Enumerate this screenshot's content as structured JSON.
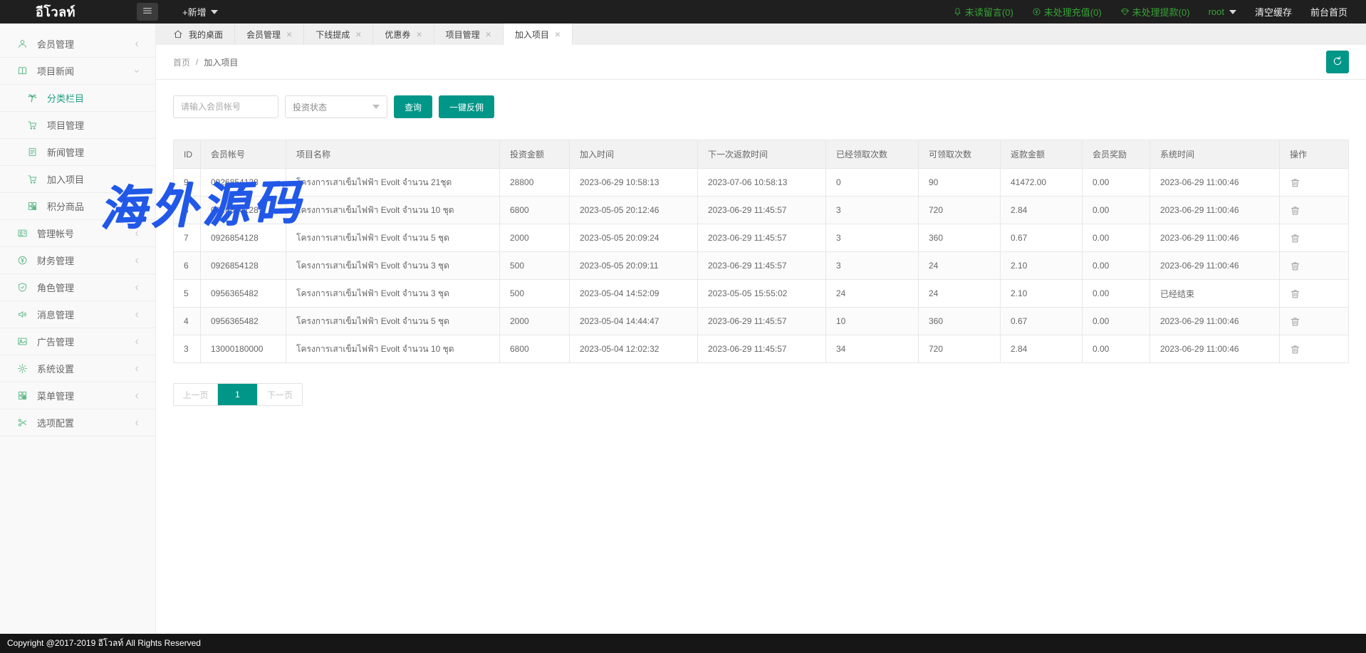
{
  "topbar": {
    "logo": "อีโวลท์",
    "add_label": "+新增",
    "notices": [
      {
        "icon": "bell-icon",
        "label": "未读留言(0)"
      },
      {
        "icon": "recharge-icon",
        "label": "未处理充值(0)"
      },
      {
        "icon": "withdraw-icon",
        "label": "未处理提款(0)"
      }
    ],
    "user": "root",
    "clear_cache": "清空缓存",
    "front_home": "前台首页"
  },
  "tabs": [
    {
      "label": "我的桌面",
      "icon": "home-icon",
      "closable": false,
      "active": false
    },
    {
      "label": "会员管理",
      "closable": true,
      "active": false
    },
    {
      "label": "下线提成",
      "closable": true,
      "active": false
    },
    {
      "label": "优惠券",
      "closable": true,
      "active": false
    },
    {
      "label": "项目管理",
      "closable": true,
      "active": false
    },
    {
      "label": "加入项目",
      "closable": true,
      "active": true
    }
  ],
  "breadcrumb": {
    "home": "首页",
    "sep": "/",
    "current": "加入项目"
  },
  "filters": {
    "account_placeholder": "请输入会员帐号",
    "status_placeholder": "投资状态",
    "search_label": "查询",
    "rebate_label": "一键反佣"
  },
  "sidebar": {
    "items": [
      {
        "label": "会员管理",
        "icon": "user-icon",
        "state": "collapsed"
      },
      {
        "label": "项目新闻",
        "icon": "book-icon",
        "state": "expanded",
        "children": [
          {
            "label": "分类栏目",
            "icon": "palm-icon",
            "active": true
          },
          {
            "label": "项目管理",
            "icon": "cart-icon",
            "active": false
          },
          {
            "label": "新闻管理",
            "icon": "news-icon",
            "active": false
          },
          {
            "label": "加入项目",
            "icon": "cart-icon",
            "active": false
          },
          {
            "label": "积分商品",
            "icon": "grid-icon",
            "active": false
          }
        ]
      },
      {
        "label": "管理帐号",
        "icon": "admin-icon",
        "state": "collapsed"
      },
      {
        "label": "财务管理",
        "icon": "finance-icon",
        "state": "collapsed"
      },
      {
        "label": "角色管理",
        "icon": "shield-icon",
        "state": "collapsed"
      },
      {
        "label": "消息管理",
        "icon": "speaker-icon",
        "state": "collapsed"
      },
      {
        "label": "广告管理",
        "icon": "ad-icon",
        "state": "collapsed"
      },
      {
        "label": "系统设置",
        "icon": "gear-icon",
        "state": "collapsed"
      },
      {
        "label": "菜单管理",
        "icon": "menu-grid-icon",
        "state": "collapsed"
      },
      {
        "label": "选项配置",
        "icon": "config-icon",
        "state": "collapsed"
      }
    ]
  },
  "table": {
    "columns": [
      "ID",
      "会员帐号",
      "项目名称",
      "投资金额",
      "加入时间",
      "下一次返款时间",
      "已经领取次数",
      "可领取次数",
      "返款金额",
      "会员奖励",
      "系统时间",
      "操作"
    ],
    "op_icon": "trash-icon",
    "rows": [
      [
        "9",
        "0926854128",
        "โครงการเสาเข็มไฟฟ้า Evolt จำนวน 21ชุด",
        "28800",
        "2023-06-29 10:58:13",
        "2023-07-06 10:58:13",
        "0",
        "90",
        "41472.00",
        "0.00",
        "2023-06-29 11:00:46"
      ],
      [
        "8",
        "0926854128",
        "โครงการเสาเข็มไฟฟ้า Evolt จำนวน 10 ชุด",
        "6800",
        "2023-05-05 20:12:46",
        "2023-06-29 11:45:57",
        "3",
        "720",
        "2.84",
        "0.00",
        "2023-06-29 11:00:46"
      ],
      [
        "7",
        "0926854128",
        "โครงการเสาเข็มไฟฟ้า Evolt จำนวน 5 ชุด",
        "2000",
        "2023-05-05 20:09:24",
        "2023-06-29 11:45:57",
        "3",
        "360",
        "0.67",
        "0.00",
        "2023-06-29 11:00:46"
      ],
      [
        "6",
        "0926854128",
        "โครงการเสาเข็มไฟฟ้า Evolt จำนวน 3 ชุด",
        "500",
        "2023-05-05 20:09:11",
        "2023-06-29 11:45:57",
        "3",
        "24",
        "2.10",
        "0.00",
        "2023-06-29 11:00:46"
      ],
      [
        "5",
        "0956365482",
        "โครงการเสาเข็มไฟฟ้า Evolt จำนวน 3 ชุด",
        "500",
        "2023-05-04 14:52:09",
        "2023-05-05 15:55:02",
        "24",
        "24",
        "2.10",
        "0.00",
        "已经结束"
      ],
      [
        "4",
        "0956365482",
        "โครงการเสาเข็มไฟฟ้า Evolt จำนวน 5 ชุด",
        "2000",
        "2023-05-04 14:44:47",
        "2023-06-29 11:45:57",
        "10",
        "360",
        "0.67",
        "0.00",
        "2023-06-29 11:00:46"
      ],
      [
        "3",
        "13000180000",
        "โครงการเสาเข็มไฟฟ้า Evolt จำนวน 10 ชุด",
        "6800",
        "2023-05-04 12:02:32",
        "2023-06-29 11:45:57",
        "34",
        "720",
        "2.84",
        "0.00",
        "2023-06-29 11:00:46"
      ]
    ]
  },
  "pagination": {
    "prev": "上一页",
    "current": "1",
    "next": "下一页"
  },
  "watermark": "海外源码",
  "footer": "Copyright @2017-2019 อีโวลท์ All Rights Reserved",
  "colors": {
    "accent": "#009688",
    "topbar_notice_green": "#35a435",
    "watermark_blue": "#2158e8",
    "topbar_black": "#1f1f1f"
  }
}
